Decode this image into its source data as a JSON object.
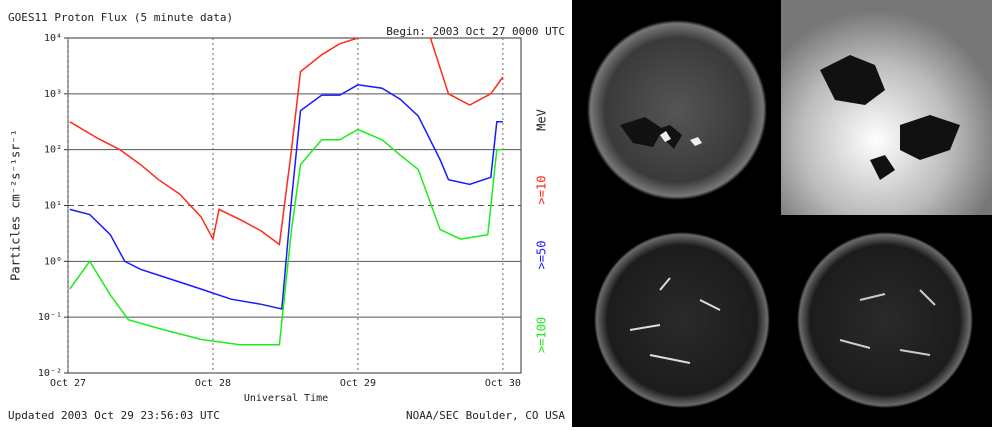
{
  "chart_data": {
    "type": "line",
    "title": "GOES11 Proton Flux (5 minute data)",
    "subtitle": "Begin: 2003 Oct 27 0000 UTC",
    "y_label": "Particles cm⁻²s⁻¹sr⁻¹",
    "x_label": "Universal Time",
    "footer_left": "Updated 2003 Oct 29 23:56:03 UTC",
    "footer_right": "NOAA/SEC Boulder, CO USA",
    "legend_unit": "MeV",
    "log_scale_y": true,
    "grid": true,
    "threshold": 10,
    "xlim": [
      0,
      75
    ],
    "xticks": [
      {
        "value": 0,
        "label": "Oct 27"
      },
      {
        "value": 24,
        "label": "Oct 28"
      },
      {
        "value": 48,
        "label": "Oct 29"
      },
      {
        "value": 72,
        "label": "Oct 30"
      }
    ],
    "ylim": [
      0.01,
      10000
    ],
    "yticks": [
      {
        "value": 0.01,
        "label": "10⁻²"
      },
      {
        "value": 0.1,
        "label": "10⁻¹"
      },
      {
        "value": 1,
        "label": "10⁰"
      },
      {
        "value": 10,
        "label": "10¹"
      },
      {
        "value": 100,
        "label": "10²"
      },
      {
        "value": 1000,
        "label": "10³"
      },
      {
        "value": 10000,
        "label": "10⁴"
      }
    ],
    "series": [
      {
        "name": ">=10",
        "color": "#ff2a1a",
        "x": [
          0.3,
          5,
          8.6,
          12,
          15,
          18.5,
          22,
          24,
          25,
          28.5,
          32,
          35,
          37,
          38.5,
          42,
          45,
          48,
          49,
          60,
          63,
          66.5,
          70,
          72
        ],
        "values": [
          316,
          158,
          100,
          54,
          29,
          16,
          6.3,
          2.5,
          8.5,
          5.6,
          3.5,
          2,
          100,
          2500,
          5000,
          7900,
          10000,
          null,
          10000,
          1000,
          630,
          1000,
          2000
        ]
      },
      {
        "name": ">=50",
        "color": "#1a1aff",
        "x": [
          0.3,
          3.6,
          7,
          9.4,
          12,
          17,
          22,
          27,
          32,
          35.4,
          37,
          38.5,
          42,
          45,
          48,
          52,
          55,
          58,
          61.6,
          63,
          66.5,
          70,
          71,
          72
        ],
        "values": [
          8.5,
          6.9,
          3,
          1,
          0.72,
          0.48,
          0.32,
          0.21,
          0.17,
          0.14,
          12.6,
          500,
          950,
          950,
          1450,
          1260,
          800,
          400,
          66,
          29,
          24,
          32,
          316,
          316
        ]
      },
      {
        "name": ">=100",
        "color": "#1aee1a",
        "x": [
          0.3,
          3.6,
          7,
          10,
          15,
          22,
          28.5,
          35,
          37,
          38.5,
          42,
          45,
          48,
          52,
          55,
          58,
          61.6,
          65,
          69.5,
          71,
          72
        ],
        "values": [
          0.32,
          1,
          0.25,
          0.09,
          0.063,
          0.04,
          0.032,
          0.032,
          3.7,
          54,
          150,
          150,
          230,
          150,
          80,
          44,
          3.7,
          2.5,
          3,
          100,
          100
        ]
      }
    ]
  }
}
